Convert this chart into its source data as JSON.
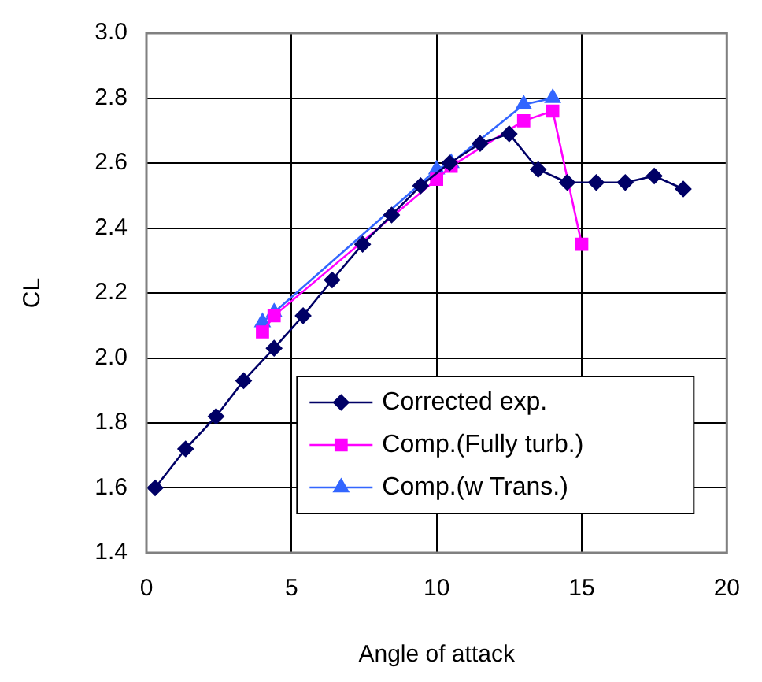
{
  "chart_data": {
    "type": "line",
    "xlabel": "Angle of attack",
    "ylabel": "CL",
    "xlim": [
      0,
      20
    ],
    "xticks": [
      0,
      5,
      10,
      15,
      20
    ],
    "ylim": [
      1.4,
      3.0
    ],
    "yticks": [
      1.4,
      1.6,
      1.8,
      {
        "value": 2,
        "label": "2.0"
      },
      2.2,
      2.4,
      2.6,
      2.8,
      {
        "value": 3,
        "label": "3.0"
      }
    ],
    "grid": true,
    "legend": "bottom right",
    "line_style": "solid",
    "series": [
      {
        "name": "Corrected exp.",
        "color": "#000066",
        "marker": "diamond",
        "x": [
          0.3,
          1.35,
          2.4,
          3.35,
          4.4,
          5.4,
          6.4,
          7.45,
          8.45,
          9.45,
          10.45,
          11.5,
          12.5,
          13.5,
          14.5,
          15.5,
          16.5,
          17.5,
          18.5
        ],
        "values": [
          1.6,
          1.72,
          1.82,
          1.93,
          2.03,
          2.13,
          2.24,
          2.35,
          2.44,
          2.53,
          2.6,
          2.66,
          2.69,
          2.58,
          2.54,
          2.54,
          2.54,
          2.56,
          2.52
        ]
      },
      {
        "name": "Comp.(Fully turb.)",
        "color": "#ff00ff",
        "marker": "square",
        "x": [
          4,
          4.4,
          10,
          10.5,
          13,
          14,
          15
        ],
        "values": [
          2.08,
          2.13,
          2.55,
          2.59,
          2.73,
          2.76,
          2.35
        ]
      },
      {
        "name": "Comp.(w Trans.)",
        "color": "#3366ff",
        "marker": "triangle",
        "x": [
          4,
          4.4,
          10,
          10.5,
          13,
          14
        ],
        "values": [
          2.11,
          2.14,
          2.58,
          2.6,
          2.78,
          2.8
        ]
      }
    ]
  }
}
